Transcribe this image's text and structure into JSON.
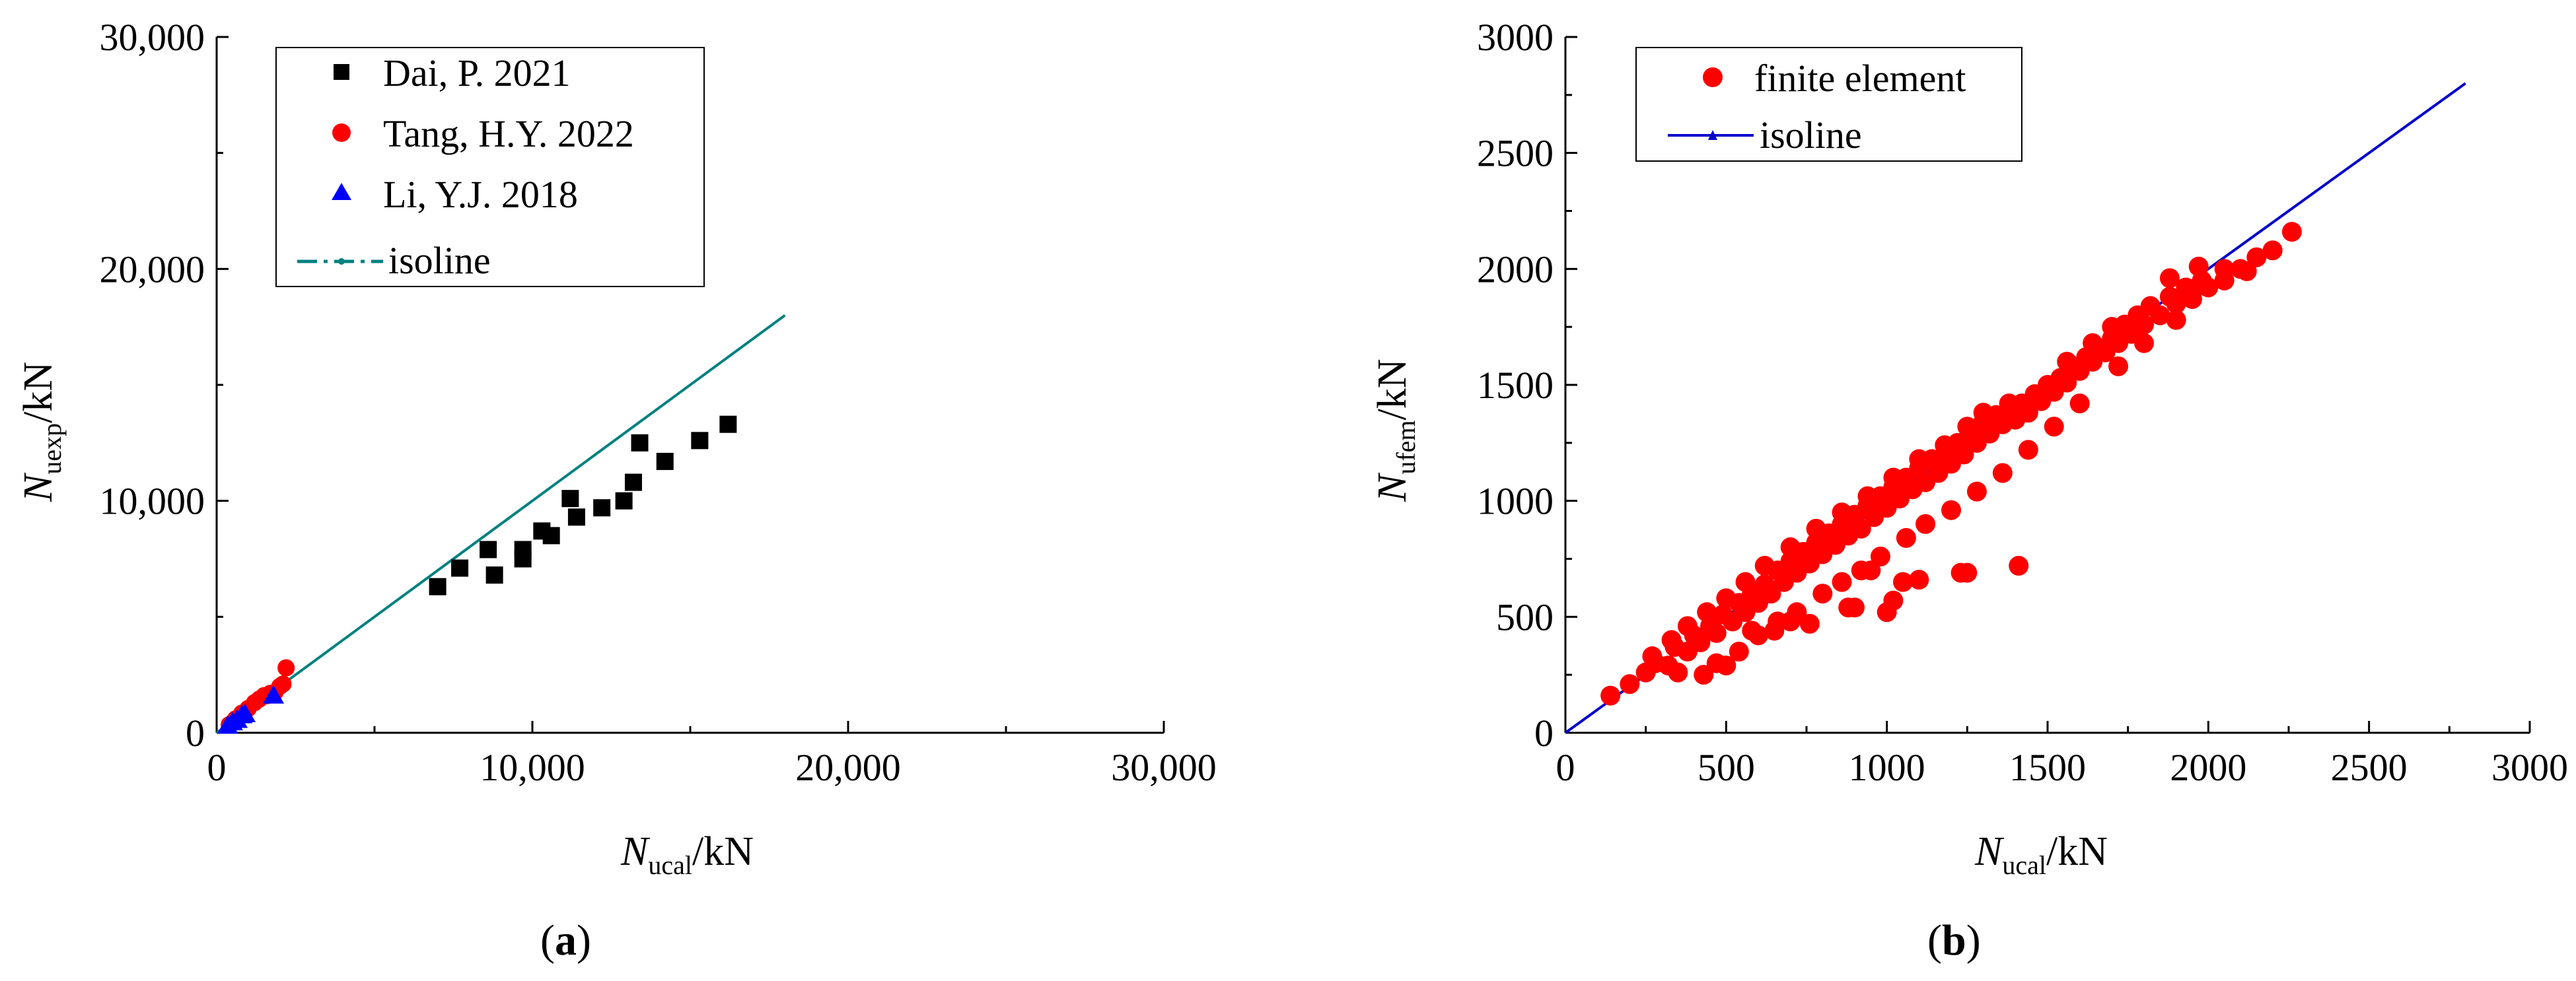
{
  "chart_data": [
    {
      "type": "scatter",
      "panel": "a",
      "caption": {
        "open": "(",
        "letter": "a",
        "close": ")"
      },
      "xlabel": {
        "main": "N",
        "sub": "ucal",
        "unit": "/kN"
      },
      "ylabel": {
        "main": "N",
        "sub": "uexp",
        "unit": "/kN"
      },
      "xlim": [
        0,
        30000
      ],
      "ylim": [
        0,
        30000
      ],
      "x_ticks": [
        0,
        10000,
        20000,
        30000
      ],
      "x_tick_labels": [
        "0",
        "10,000",
        "20,000",
        "30,000"
      ],
      "y_ticks": [
        0,
        10000,
        20000,
        30000
      ],
      "y_tick_labels": [
        "0",
        "10,000",
        "20,000",
        "30,000"
      ],
      "grid": false,
      "legend_position": "top-left",
      "series": [
        {
          "name": "Dai, P. 2021",
          "marker": "square",
          "color": "#000000",
          "points": [
            [
              7000,
              6300
            ],
            [
              7700,
              7100
            ],
            [
              8600,
              7900
            ],
            [
              8800,
              6800
            ],
            [
              9700,
              7500
            ],
            [
              9700,
              7900
            ],
            [
              10300,
              8700
            ],
            [
              10600,
              8500
            ],
            [
              11200,
              10100
            ],
            [
              11400,
              9300
            ],
            [
              12200,
              9700
            ],
            [
              12900,
              10000
            ],
            [
              13200,
              10800
            ],
            [
              13400,
              12500
            ],
            [
              14200,
              11700
            ],
            [
              15300,
              12600
            ],
            [
              16200,
              13300
            ]
          ]
        },
        {
          "name": "Tang, H.Y. 2022",
          "marker": "circle",
          "color": "#ff0000",
          "points": [
            [
              400,
              350
            ],
            [
              600,
              600
            ],
            [
              800,
              850
            ],
            [
              1000,
              1050
            ],
            [
              1200,
              1300
            ],
            [
              1350,
              1450
            ],
            [
              1500,
              1600
            ],
            [
              1600,
              1600
            ],
            [
              1700,
              1700
            ],
            [
              1850,
              1750
            ],
            [
              2000,
              2000
            ],
            [
              2100,
              2100
            ],
            [
              2200,
              2800
            ]
          ]
        },
        {
          "name": "Li, Y.J. 2018",
          "marker": "triangle",
          "color": "#0000ff",
          "points": [
            [
              350,
              300
            ],
            [
              500,
              450
            ],
            [
              650,
              550
            ],
            [
              800,
              750
            ],
            [
              900,
              800
            ],
            [
              1800,
              1600
            ]
          ]
        }
      ],
      "isoline": {
        "name": "isoline",
        "color": "#008080",
        "style": "dash-dot",
        "from": [
          0,
          0
        ],
        "to": [
          18000,
          18000
        ]
      }
    },
    {
      "type": "scatter",
      "panel": "b",
      "caption": {
        "open": "(",
        "letter": "b",
        "close": ")"
      },
      "xlabel": {
        "main": "N",
        "sub": "ucal",
        "unit": "/kN"
      },
      "ylabel": {
        "main": "N",
        "sub": "ufem",
        "unit": "/kN"
      },
      "xlim": [
        0,
        3000
      ],
      "ylim": [
        0,
        3000
      ],
      "x_ticks": [
        0,
        500,
        1000,
        1500,
        2000,
        2500,
        3000
      ],
      "x_tick_labels": [
        "0",
        "500",
        "1000",
        "1500",
        "2000",
        "2500",
        "3000"
      ],
      "y_ticks": [
        0,
        500,
        1000,
        1500,
        2000,
        2500,
        3000
      ],
      "y_tick_labels": [
        "0",
        "500",
        "1000",
        "1500",
        "2000",
        "2500",
        "3000"
      ],
      "grid": false,
      "legend_position": "top-left",
      "series": [
        {
          "name": "finite element",
          "marker": "circle",
          "color": "#ff0000",
          "points": [
            [
              140,
              160
            ],
            [
              200,
              210
            ],
            [
              250,
              260
            ],
            [
              280,
              300
            ],
            [
              320,
              290
            ],
            [
              340,
              370
            ],
            [
              380,
              350
            ],
            [
              400,
              420
            ],
            [
              420,
              390
            ],
            [
              450,
              460
            ],
            [
              470,
              430
            ],
            [
              490,
              510
            ],
            [
              520,
              480
            ],
            [
              540,
              560
            ],
            [
              560,
              520
            ],
            [
              580,
              600
            ],
            [
              600,
              560
            ],
            [
              620,
              640
            ],
            [
              640,
              600
            ],
            [
              660,
              700
            ],
            [
              680,
              650
            ],
            [
              700,
              740
            ],
            [
              720,
              690
            ],
            [
              740,
              780
            ],
            [
              760,
              730
            ],
            [
              780,
              820
            ],
            [
              800,
              770
            ],
            [
              820,
              860
            ],
            [
              840,
              810
            ],
            [
              860,
              900
            ],
            [
              880,
              850
            ],
            [
              900,
              940
            ],
            [
              920,
              880
            ],
            [
              940,
              980
            ],
            [
              960,
              930
            ],
            [
              980,
              1020
            ],
            [
              1000,
              970
            ],
            [
              1020,
              1060
            ],
            [
              1040,
              1010
            ],
            [
              1060,
              1100
            ],
            [
              1080,
              1050
            ],
            [
              1100,
              1140
            ],
            [
              1120,
              1080
            ],
            [
              1140,
              1180
            ],
            [
              1160,
              1120
            ],
            [
              1180,
              1200
            ],
            [
              1200,
              1160
            ],
            [
              1220,
              1250
            ],
            [
              1240,
              1200
            ],
            [
              1260,
              1300
            ],
            [
              1280,
              1250
            ],
            [
              1300,
              1340
            ],
            [
              1320,
              1290
            ],
            [
              1340,
              1370
            ],
            [
              1360,
              1330
            ],
            [
              1380,
              1400
            ],
            [
              1400,
              1350
            ],
            [
              1420,
              1420
            ],
            [
              1440,
              1380
            ],
            [
              1460,
              1460
            ],
            [
              1480,
              1430
            ],
            [
              1500,
              1500
            ],
            [
              1520,
              1470
            ],
            [
              1540,
              1530
            ],
            [
              1560,
              1510
            ],
            [
              1580,
              1580
            ],
            [
              1600,
              1560
            ],
            [
              1620,
              1620
            ],
            [
              1640,
              1600
            ],
            [
              1660,
              1660
            ],
            [
              1680,
              1640
            ],
            [
              1700,
              1700
            ],
            [
              1720,
              1680
            ],
            [
              1740,
              1760
            ],
            [
              1760,
              1720
            ],
            [
              1780,
              1800
            ],
            [
              1800,
              1760
            ],
            [
              1820,
              1840
            ],
            [
              1850,
              1800
            ],
            [
              1880,
              1880
            ],
            [
              1900,
              1850
            ],
            [
              1930,
              1920
            ],
            [
              1950,
              1870
            ],
            [
              1980,
              1950
            ],
            [
              2000,
              1920
            ],
            [
              2050,
              2000
            ],
            [
              2100,
              2000
            ],
            [
              2150,
              2050
            ],
            [
              2200,
              2080
            ],
            [
              2260,
              2160
            ],
            [
              1970,
              2010
            ],
            [
              1880,
              1960
            ],
            [
              1700,
              1750
            ],
            [
              1640,
              1680
            ],
            [
              1560,
              1600
            ],
            [
              1380,
              1420
            ],
            [
              1300,
              1380
            ],
            [
              1250,
              1320
            ],
            [
              1180,
              1240
            ],
            [
              1100,
              1180
            ],
            [
              1020,
              1100
            ],
            [
              940,
              1020
            ],
            [
              860,
              950
            ],
            [
              780,
              880
            ],
            [
              700,
              800
            ],
            [
              620,
              720
            ],
            [
              560,
              650
            ],
            [
              500,
              580
            ],
            [
              440,
              520
            ],
            [
              380,
              460
            ],
            [
              330,
              400
            ],
            [
              270,
              330
            ],
            [
              350,
              260
            ],
            [
              430,
              250
            ],
            [
              500,
              290
            ],
            [
              540,
              350
            ],
            [
              600,
              420
            ],
            [
              660,
              480
            ],
            [
              720,
              520
            ],
            [
              800,
              600
            ],
            [
              860,
              650
            ],
            [
              920,
              700
            ],
            [
              980,
              760
            ],
            [
              1060,
              840
            ],
            [
              1120,
              900
            ],
            [
              1200,
              960
            ],
            [
              1280,
              1040
            ],
            [
              1360,
              1120
            ],
            [
              1440,
              1220
            ],
            [
              1520,
              1320
            ],
            [
              1600,
              1420
            ],
            [
              1720,
              1580
            ],
            [
              1800,
              1680
            ],
            [
              1900,
              1780
            ],
            [
              1950,
              1900
            ],
            [
              2050,
              1950
            ],
            [
              2120,
              1990
            ],
            [
              700,
              480
            ],
            [
              760,
              470
            ],
            [
              650,
              440
            ],
            [
              580,
              440
            ],
            [
              900,
              540
            ],
            [
              950,
              700
            ],
            [
              1050,
              650
            ],
            [
              1100,
              660
            ],
            [
              1020,
              570
            ],
            [
              1230,
              690
            ],
            [
              1250,
              690
            ],
            [
              1410,
              720
            ],
            [
              1000,
              520
            ],
            [
              880,
              540
            ],
            [
              470,
              300
            ]
          ]
        }
      ],
      "isoline": {
        "name": "isoline",
        "color": "#0000cc",
        "style": "solid",
        "from": [
          0,
          0
        ],
        "to": [
          2800,
          2800
        ]
      }
    }
  ]
}
